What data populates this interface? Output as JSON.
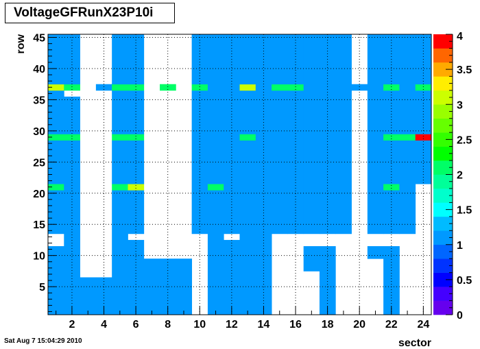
{
  "header": {
    "title": "VoltageGFRunX23P10i"
  },
  "footer": {
    "timestamp": "Sat Aug  7 15:04:29 2010"
  },
  "chart_data": {
    "type": "heatmap",
    "title": "VoltageGFRunX23P10i",
    "xlabel": "sector",
    "ylabel": "row",
    "xlim": [
      0.5,
      24.5
    ],
    "ylim": [
      0.5,
      45.5
    ],
    "xticks": [
      "2",
      "4",
      "6",
      "8",
      "10",
      "12",
      "14",
      "16",
      "18",
      "20",
      "22",
      "24"
    ],
    "yticks": [
      "5",
      "10",
      "15",
      "20",
      "25",
      "30",
      "35",
      "40",
      "45"
    ],
    "zlim": [
      0,
      4
    ],
    "colorbar_ticks": [
      "0",
      "0.5",
      "1",
      "1.5",
      "2",
      "2.5",
      "3",
      "3.5",
      "4"
    ],
    "grid": true,
    "default_value": 1,
    "missing_ranges": [
      {
        "sector": 1,
        "rows": [
          [
            12,
            13
          ]
        ]
      },
      {
        "sector": 2,
        "rows": [
          [
            36,
            36
          ]
        ]
      },
      {
        "sector": 3,
        "rows": [
          [
            7,
            45
          ]
        ]
      },
      {
        "sector": 4,
        "rows": [
          [
            7,
            36
          ],
          [
            38,
            45
          ]
        ]
      },
      {
        "sector": 6,
        "rows": [
          [
            13,
            13
          ]
        ]
      },
      {
        "sector": 7,
        "rows": [
          [
            10,
            45
          ]
        ]
      },
      {
        "sector": 8,
        "rows": [
          [
            10,
            36
          ],
          [
            38,
            45
          ]
        ]
      },
      {
        "sector": 9,
        "rows": [
          [
            10,
            45
          ]
        ]
      },
      {
        "sector": 10,
        "rows": [
          [
            1,
            13
          ]
        ]
      },
      {
        "sector": 12,
        "rows": [
          [
            13,
            13
          ]
        ]
      },
      {
        "sector": 15,
        "rows": [
          [
            1,
            13
          ]
        ]
      },
      {
        "sector": 16,
        "rows": [
          [
            1,
            13
          ]
        ]
      },
      {
        "sector": 17,
        "rows": [
          [
            1,
            7
          ],
          [
            12,
            13
          ]
        ]
      },
      {
        "sector": 18,
        "rows": [
          [
            12,
            13
          ]
        ]
      },
      {
        "sector": 19,
        "rows": [
          [
            1,
            13
          ]
        ]
      },
      {
        "sector": 20,
        "rows": [
          [
            1,
            36
          ],
          [
            38,
            45
          ]
        ]
      },
      {
        "sector": 21,
        "rows": [
          [
            1,
            9
          ],
          [
            12,
            13
          ]
        ]
      },
      {
        "sector": 22,
        "rows": [
          [
            12,
            13
          ]
        ]
      },
      {
        "sector": 23,
        "rows": [
          [
            1,
            13
          ]
        ]
      },
      {
        "sector": 24,
        "rows": [
          [
            1,
            21
          ]
        ]
      }
    ],
    "cells": [
      {
        "sector": 1,
        "row": 37,
        "value": 3
      },
      {
        "sector": 2,
        "row": 37,
        "value": 2
      },
      {
        "sector": 1,
        "row": 29,
        "value": 2
      },
      {
        "sector": 2,
        "row": 29,
        "value": 2
      },
      {
        "sector": 1,
        "row": 21,
        "value": 2
      },
      {
        "sector": 5,
        "row": 37,
        "value": 2
      },
      {
        "sector": 6,
        "row": 37,
        "value": 2
      },
      {
        "sector": 5,
        "row": 29,
        "value": 2
      },
      {
        "sector": 6,
        "row": 29,
        "value": 2
      },
      {
        "sector": 5,
        "row": 21,
        "value": 2
      },
      {
        "sector": 6,
        "row": 21,
        "value": 3
      },
      {
        "sector": 8,
        "row": 37,
        "value": 2
      },
      {
        "sector": 10,
        "row": 37,
        "value": 2
      },
      {
        "sector": 11,
        "row": 21,
        "value": 2
      },
      {
        "sector": 13,
        "row": 37,
        "value": 3
      },
      {
        "sector": 13,
        "row": 29,
        "value": 2
      },
      {
        "sector": 15,
        "row": 37,
        "value": 2
      },
      {
        "sector": 16,
        "row": 37,
        "value": 2
      },
      {
        "sector": 22,
        "row": 37,
        "value": 2
      },
      {
        "sector": 22,
        "row": 29,
        "value": 2
      },
      {
        "sector": 23,
        "row": 29,
        "value": 2
      },
      {
        "sector": 24,
        "row": 29,
        "value": 4
      },
      {
        "sector": 24,
        "row": 37,
        "value": 2
      },
      {
        "sector": 22,
        "row": 21,
        "value": 2
      }
    ]
  }
}
